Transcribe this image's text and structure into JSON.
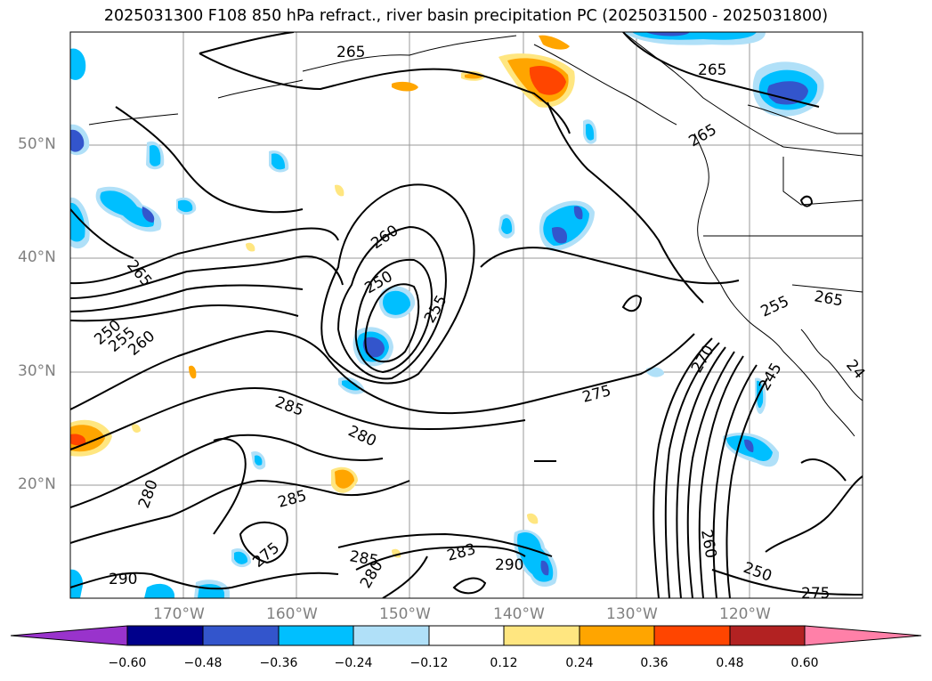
{
  "title": "2025031300 F108 850 hPa refract., river basin precipitation PC (2025031500 - 2025031800)",
  "lat_labels": [
    "50°N",
    "40°N",
    "30°N",
    "20°N"
  ],
  "lon_labels": [
    "170°W",
    "160°W",
    "150°W",
    "140°W",
    "130°W",
    "120°W"
  ],
  "colorbar": {
    "ticks": [
      "−0.60",
      "−0.48",
      "−0.36",
      "−0.24",
      "−0.12",
      "0.12",
      "0.24",
      "0.36",
      "0.48",
      "0.60"
    ],
    "colors": [
      "#9933cc",
      "#00008b",
      "#3355cc",
      "#00bfff",
      "#b0e0f8",
      "#ffffff",
      "#ffe680",
      "#ffa500",
      "#ff4500",
      "#b22222",
      "#ff80a8"
    ]
  },
  "contour_labels": [
    "265",
    "265",
    "265",
    "265",
    "260",
    "250",
    "255",
    "250",
    "255",
    "260",
    "285",
    "280",
    "275",
    "270",
    "245",
    "255",
    "265",
    "280",
    "285",
    "275",
    "285",
    "283",
    "290",
    "280",
    "260",
    "250",
    "275",
    "290",
    "24"
  ]
}
